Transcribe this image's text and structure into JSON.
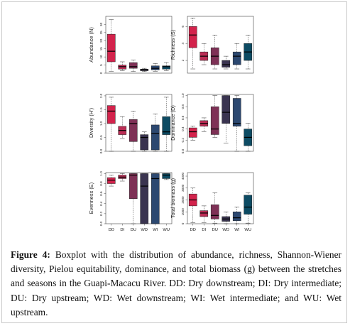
{
  "caption": {
    "label": "Figure 4:",
    "text": "Boxplot with the distribution of abundance, richness, Shannon-Wiener diversity, Pielou equitability, dominance, and total biomass (g) between the stretches and seasons in the Guapi-Macacu River. DD: Dry downstream; DI: Dry intermediate; DU: Dry upstream; WD: Wet downstream; WI: Wet intermediate; and WU: Wet upstream."
  },
  "colors": {
    "DD": "#d3234c",
    "DI": "#bb2d55",
    "DU": "#7e3156",
    "WD": "#3a3450",
    "WI": "#2c4870",
    "WU": "#0d4b63"
  },
  "chart_data": [
    {
      "type": "boxplot",
      "ylabel": "Abundance (N)",
      "ylim": [
        0,
        35
      ],
      "yticks": [
        "0",
        "5",
        "10",
        "15",
        "20",
        "25",
        "30"
      ],
      "categories": [
        "DD",
        "DI",
        "DU",
        "WD",
        "WI",
        "WU"
      ],
      "show_xlabels": false,
      "series": [
        {
          "category": "DD",
          "min": 1,
          "q1": 7,
          "median": 13.5,
          "q3": 24,
          "max": 33
        },
        {
          "category": "DI",
          "min": 1.5,
          "q1": 2.5,
          "median": 4,
          "q3": 5,
          "max": 7
        },
        {
          "category": "DU",
          "min": 1,
          "q1": 3,
          "median": 4,
          "q3": 6.5,
          "max": 8
        },
        {
          "category": "WD",
          "min": 1,
          "q1": 1.5,
          "median": 2,
          "q3": 2.5,
          "max": 3
        },
        {
          "category": "WI",
          "min": 1,
          "q1": 2,
          "median": 3,
          "q3": 4.5,
          "max": 6
        },
        {
          "category": "WU",
          "min": 1.5,
          "q1": 2.5,
          "median": 4,
          "q3": 4.5,
          "max": 6.5
        }
      ]
    },
    {
      "type": "boxplot",
      "ylabel": "Richness (S)",
      "ylim": [
        0.5,
        7.2
      ],
      "yticks": [
        "2",
        "4",
        "6"
      ],
      "ytick_values": [
        2,
        4,
        6
      ],
      "categories": [
        "DD",
        "DI",
        "DU",
        "WD",
        "WI",
        "WU"
      ],
      "show_xlabels": false,
      "series": [
        {
          "category": "DD",
          "min": 1,
          "q1": 3.5,
          "median": 5,
          "q3": 6,
          "max": 7
        },
        {
          "category": "DI",
          "min": 1.5,
          "q1": 2,
          "median": 2.5,
          "q3": 3,
          "max": 4
        },
        {
          "category": "DU",
          "min": 1,
          "q1": 1.5,
          "median": 2.5,
          "q3": 3.5,
          "max": 5
        },
        {
          "category": "WD",
          "min": 1,
          "q1": 1.2,
          "median": 1.5,
          "q3": 2,
          "max": 2.5
        },
        {
          "category": "WI",
          "min": 1,
          "q1": 1.5,
          "median": 2.5,
          "q3": 3,
          "max": 4
        },
        {
          "category": "WU",
          "min": 1,
          "q1": 2,
          "median": 3,
          "q3": 4,
          "max": 5
        }
      ]
    },
    {
      "type": "boxplot",
      "ylabel": "Diversity (H')",
      "ylim": [
        0,
        2.05
      ],
      "yticks": [
        "0.0",
        "0.5",
        "1.0",
        "1.5",
        "2.0"
      ],
      "ytick_values": [
        0,
        0.5,
        1.0,
        1.5,
        2.0
      ],
      "categories": [
        "DD",
        "DI",
        "DU",
        "WD",
        "WI",
        "WU"
      ],
      "show_xlabels": false,
      "series": [
        {
          "category": "DD",
          "min": 0,
          "q1": 1.0,
          "median": 1.45,
          "q3": 1.65,
          "max": 1.95
        },
        {
          "category": "DI",
          "min": 0.45,
          "q1": 0.6,
          "median": 0.75,
          "q3": 0.9,
          "max": 1.25
        },
        {
          "category": "DU",
          "min": 0,
          "q1": 0.35,
          "median": 1.0,
          "q3": 1.15,
          "max": 1.45
        },
        {
          "category": "WD",
          "min": 0,
          "q1": 0.05,
          "median": 0.5,
          "q3": 0.6,
          "max": 0.7
        },
        {
          "category": "WI",
          "min": 0,
          "q1": 0.05,
          "median": 0.65,
          "q3": 0.95,
          "max": 1.35
        },
        {
          "category": "WU",
          "min": 0,
          "q1": 0.6,
          "median": 0.7,
          "q3": 1.25,
          "max": 1.95
        }
      ]
    },
    {
      "type": "boxplot",
      "ylabel": "Dominance (D)",
      "ylim": [
        0,
        1.02
      ],
      "yticks": [
        "0.0",
        "0.2",
        "0.4",
        "0.6",
        "0.8",
        "1.0"
      ],
      "ytick_values": [
        0,
        0.2,
        0.4,
        0.6,
        0.8,
        1.0
      ],
      "categories": [
        "DD",
        "DI",
        "DU",
        "WD",
        "WI",
        "WU"
      ],
      "show_xlabels": false,
      "series": [
        {
          "category": "DD",
          "min": 0.2,
          "q1": 0.25,
          "median": 0.35,
          "q3": 0.42,
          "max": 0.45
        },
        {
          "category": "DI",
          "min": 0.35,
          "q1": 0.45,
          "median": 0.5,
          "q3": 0.55,
          "max": 0.6
        },
        {
          "category": "DU",
          "min": 0.25,
          "q1": 0.3,
          "median": 0.4,
          "q3": 0.8,
          "max": 1.0
        },
        {
          "category": "WD",
          "min": 0.15,
          "q1": 0.5,
          "median": 0.7,
          "q3": 1.0,
          "max": 1.0
        },
        {
          "category": "WI",
          "min": 0,
          "q1": 0.45,
          "median": 0.5,
          "q3": 0.95,
          "max": 1.0
        },
        {
          "category": "WU",
          "min": 0,
          "q1": 0.1,
          "median": 0.25,
          "q3": 0.4,
          "max": 0.5
        }
      ]
    },
    {
      "type": "boxplot",
      "ylabel": "Evenness (E)",
      "ylim": [
        0,
        1.02
      ],
      "yticks": [
        "0.0",
        "0.2",
        "0.4",
        "0.6",
        "0.8",
        "1.0"
      ],
      "ytick_values": [
        0,
        0.2,
        0.4,
        0.6,
        0.8,
        1.0
      ],
      "categories": [
        "DD",
        "DI",
        "DU",
        "WD",
        "WI",
        "WU"
      ],
      "show_xlabels": true,
      "series": [
        {
          "category": "DD",
          "min": 0.75,
          "q1": 0.8,
          "median": 0.87,
          "q3": 0.92,
          "max": 0.97
        },
        {
          "category": "DI",
          "min": 0.85,
          "q1": 0.9,
          "median": 0.93,
          "q3": 0.97,
          "max": 1.0
        },
        {
          "category": "DU",
          "min": 0,
          "q1": 0.5,
          "median": 0.97,
          "q3": 1.0,
          "max": 1.0
        },
        {
          "category": "WD",
          "min": 0,
          "q1": 0,
          "median": 0.75,
          "q3": 1.0,
          "max": 1.0
        },
        {
          "category": "WI",
          "min": 0,
          "q1": 0,
          "median": 0.9,
          "q3": 1.0,
          "max": 1.0
        },
        {
          "category": "WU",
          "min": 0.88,
          "q1": 0.9,
          "median": 0.97,
          "q3": 1.0,
          "max": 1.0
        }
      ]
    },
    {
      "type": "boxplot",
      "ylabel": "Total biomass (g)",
      "ylim": [
        0,
        4300
      ],
      "yticks": [
        "0",
        "1000",
        "2000",
        "3000",
        "4000"
      ],
      "ytick_values": [
        0,
        1000,
        2000,
        3000,
        4000
      ],
      "categories": [
        "DD",
        "DI",
        "DU",
        "WD",
        "WI",
        "WU"
      ],
      "show_xlabels": true,
      "series": [
        {
          "category": "DD",
          "min": 100,
          "q1": 1500,
          "median": 2000,
          "q3": 2500,
          "max": 3000
        },
        {
          "category": "DI",
          "min": 100,
          "q1": 600,
          "median": 900,
          "q3": 1100,
          "max": 1500
        },
        {
          "category": "DU",
          "min": 50,
          "q1": 400,
          "median": 700,
          "q3": 1600,
          "max": 2600
        },
        {
          "category": "WD",
          "min": 0,
          "q1": 200,
          "median": 400,
          "q3": 600,
          "max": 1000
        },
        {
          "category": "WI",
          "min": 0,
          "q1": 250,
          "median": 500,
          "q3": 1000,
          "max": 1400
        },
        {
          "category": "WU",
          "min": 50,
          "q1": 800,
          "median": 1400,
          "q3": 2400,
          "max": 2600
        }
      ]
    }
  ]
}
